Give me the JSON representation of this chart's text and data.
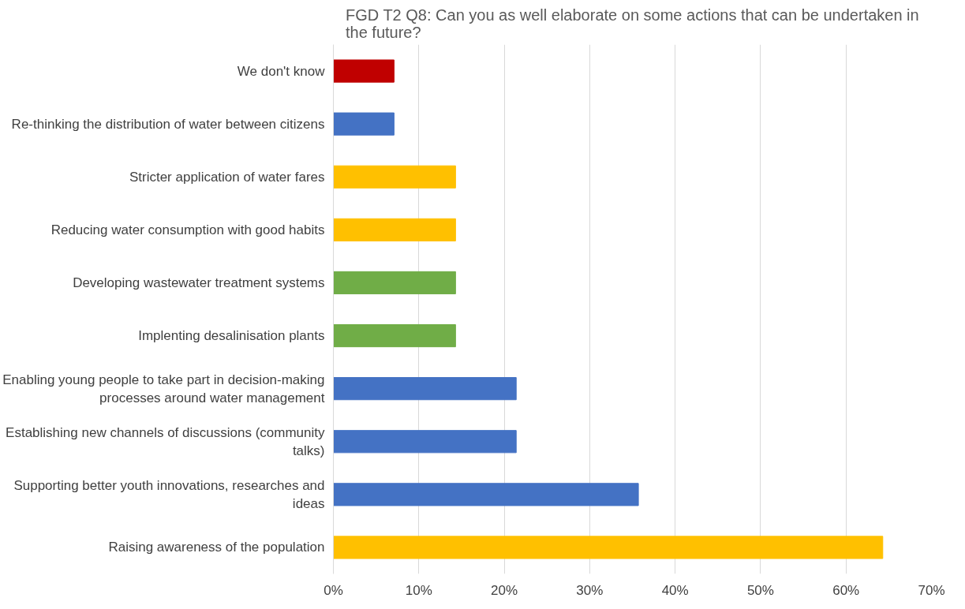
{
  "chart_data": {
    "type": "bar",
    "orientation": "horizontal",
    "title": "FGD T2 Q8: Can you as well elaborate on some actions that can be undertaken in the future?",
    "categories": [
      "We don't know",
      "Re-thinking the distribution of water between citizens",
      "Stricter application of water fares",
      "Reducing water consumption with good habits",
      "Developing wastewater treatment systems",
      "Implenting desalinisation plants",
      "Enabling young people to take part in decision-making processes around water management",
      "Establishing new channels of discussions (community talks)",
      "Supporting better youth innovations, researches and ideas",
      "Raising awareness of the population"
    ],
    "values": [
      7.1,
      7.1,
      14.3,
      14.3,
      14.3,
      14.3,
      21.4,
      21.4,
      35.7,
      64.3
    ],
    "colors": [
      "#c00000",
      "#4472c4",
      "#ffc000",
      "#ffc000",
      "#70ad47",
      "#70ad47",
      "#4472c4",
      "#4472c4",
      "#4472c4",
      "#ffc000"
    ],
    "xlim": [
      0,
      70
    ],
    "xticks": [
      {
        "value": 0,
        "label": "0%"
      },
      {
        "value": 10,
        "label": "10%"
      },
      {
        "value": 20,
        "label": "20%"
      },
      {
        "value": 30,
        "label": "30%"
      },
      {
        "value": 40,
        "label": "40%"
      },
      {
        "value": 50,
        "label": "50%"
      },
      {
        "value": 60,
        "label": "60%"
      },
      {
        "value": 70,
        "label": "70%"
      }
    ],
    "grid": "x"
  }
}
